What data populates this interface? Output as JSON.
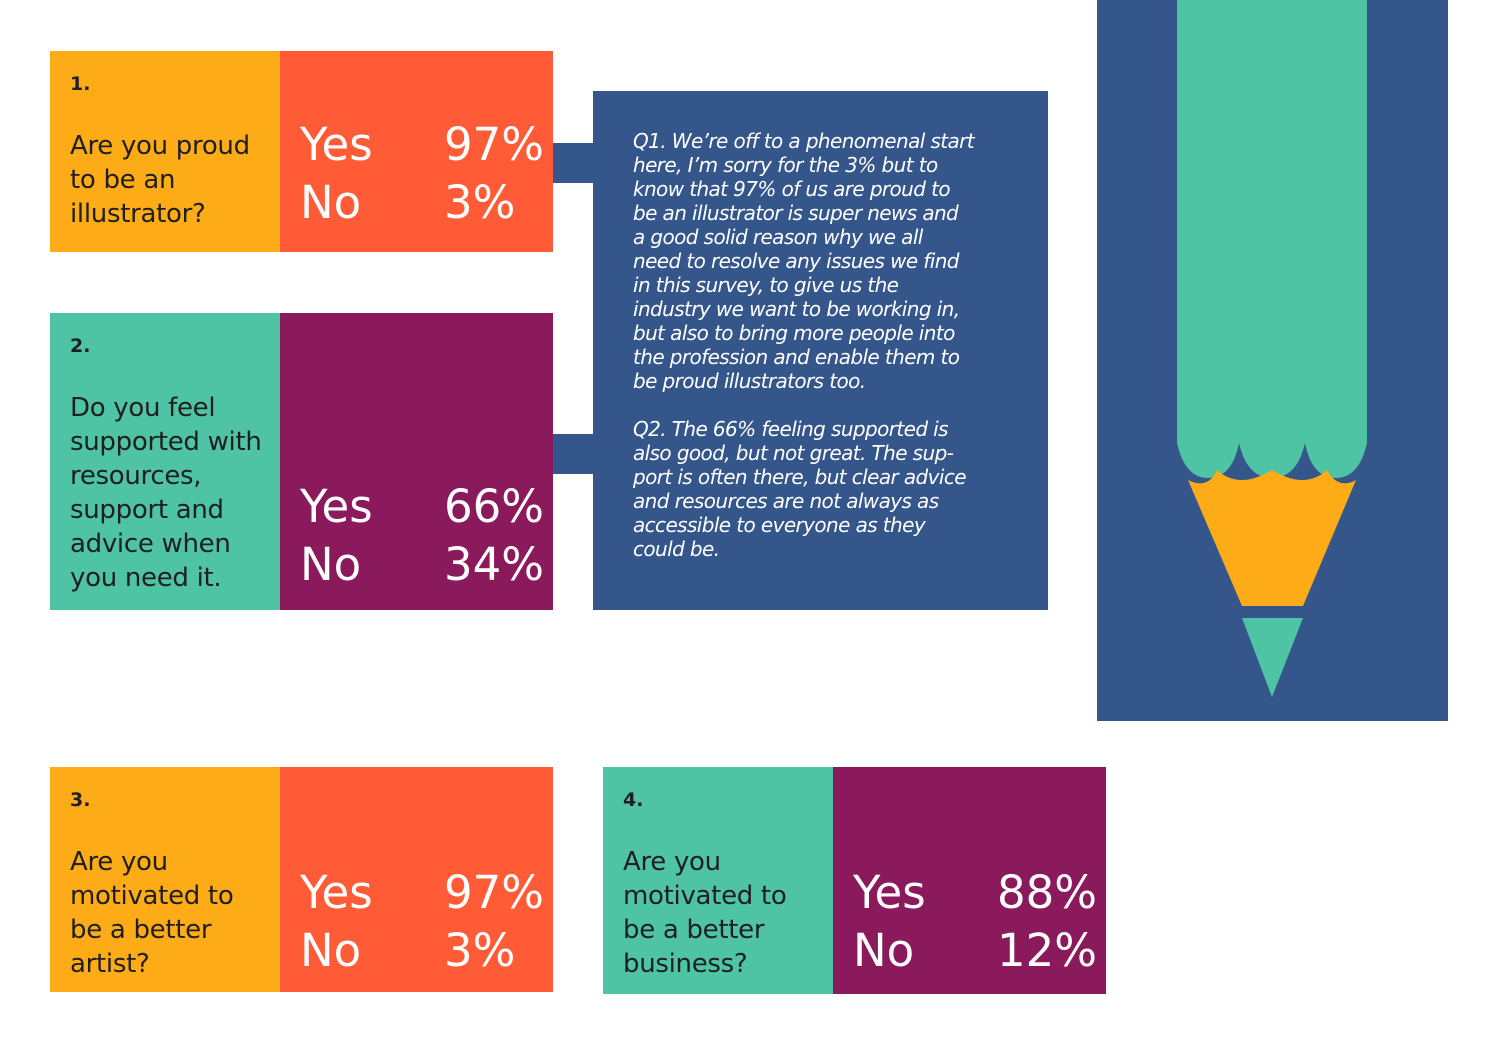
{
  "questions": [
    {
      "number": "1.",
      "lines": [
        "Are you proud",
        "to be an",
        "illustrator?"
      ],
      "yes_label": "Yes",
      "yes_value": "97%",
      "no_label": "No",
      "no_value": "3%"
    },
    {
      "number": "2.",
      "lines": [
        "Do you feel",
        "supported with",
        "resources,",
        "support and",
        "advice when",
        "you need it."
      ],
      "yes_label": "Yes",
      "yes_value": "66%",
      "no_label": "No",
      "no_value": "34%"
    },
    {
      "number": "3.",
      "lines": [
        "Are you",
        "motivated to",
        "be a better",
        "artist?"
      ],
      "yes_label": "Yes",
      "yes_value": "97%",
      "no_label": "No",
      "no_value": "3%"
    },
    {
      "number": "4.",
      "lines": [
        "Are you",
        "motivated to",
        "be a better",
        "business?"
      ],
      "yes_label": "Yes",
      "yes_value": "88%",
      "no_label": "No",
      "no_value": "12%"
    }
  ],
  "commentary": {
    "q1_lines": [
      "Q1. We’re off to a phenomenal start",
      "here, I’m sorry for the 3% but to",
      "know that 97% of us are proud to",
      "be an illustrator is super news and",
      "a good solid reason why we all",
      "need to resolve any issues we find",
      "in this survey, to give us the",
      "industry we want to be working in,",
      "but also to bring more people into",
      "the profession and enable them to",
      "be proud illustrators too."
    ],
    "q2_lines": [
      "Q2. The 66% feeling supported is",
      "also good, but not great. The sup-",
      "port is often there, but clear advice",
      "and resources are not always as",
      "accessible to everyone as they",
      "could be."
    ]
  },
  "colors": {
    "orange_yellow": "#fdab17",
    "orange_red": "#ff5b37",
    "teal": "#4ec4a5",
    "plum": "#8b1a5c",
    "navy": "#34568b"
  },
  "illustration": {
    "icon": "pencil-icon"
  }
}
